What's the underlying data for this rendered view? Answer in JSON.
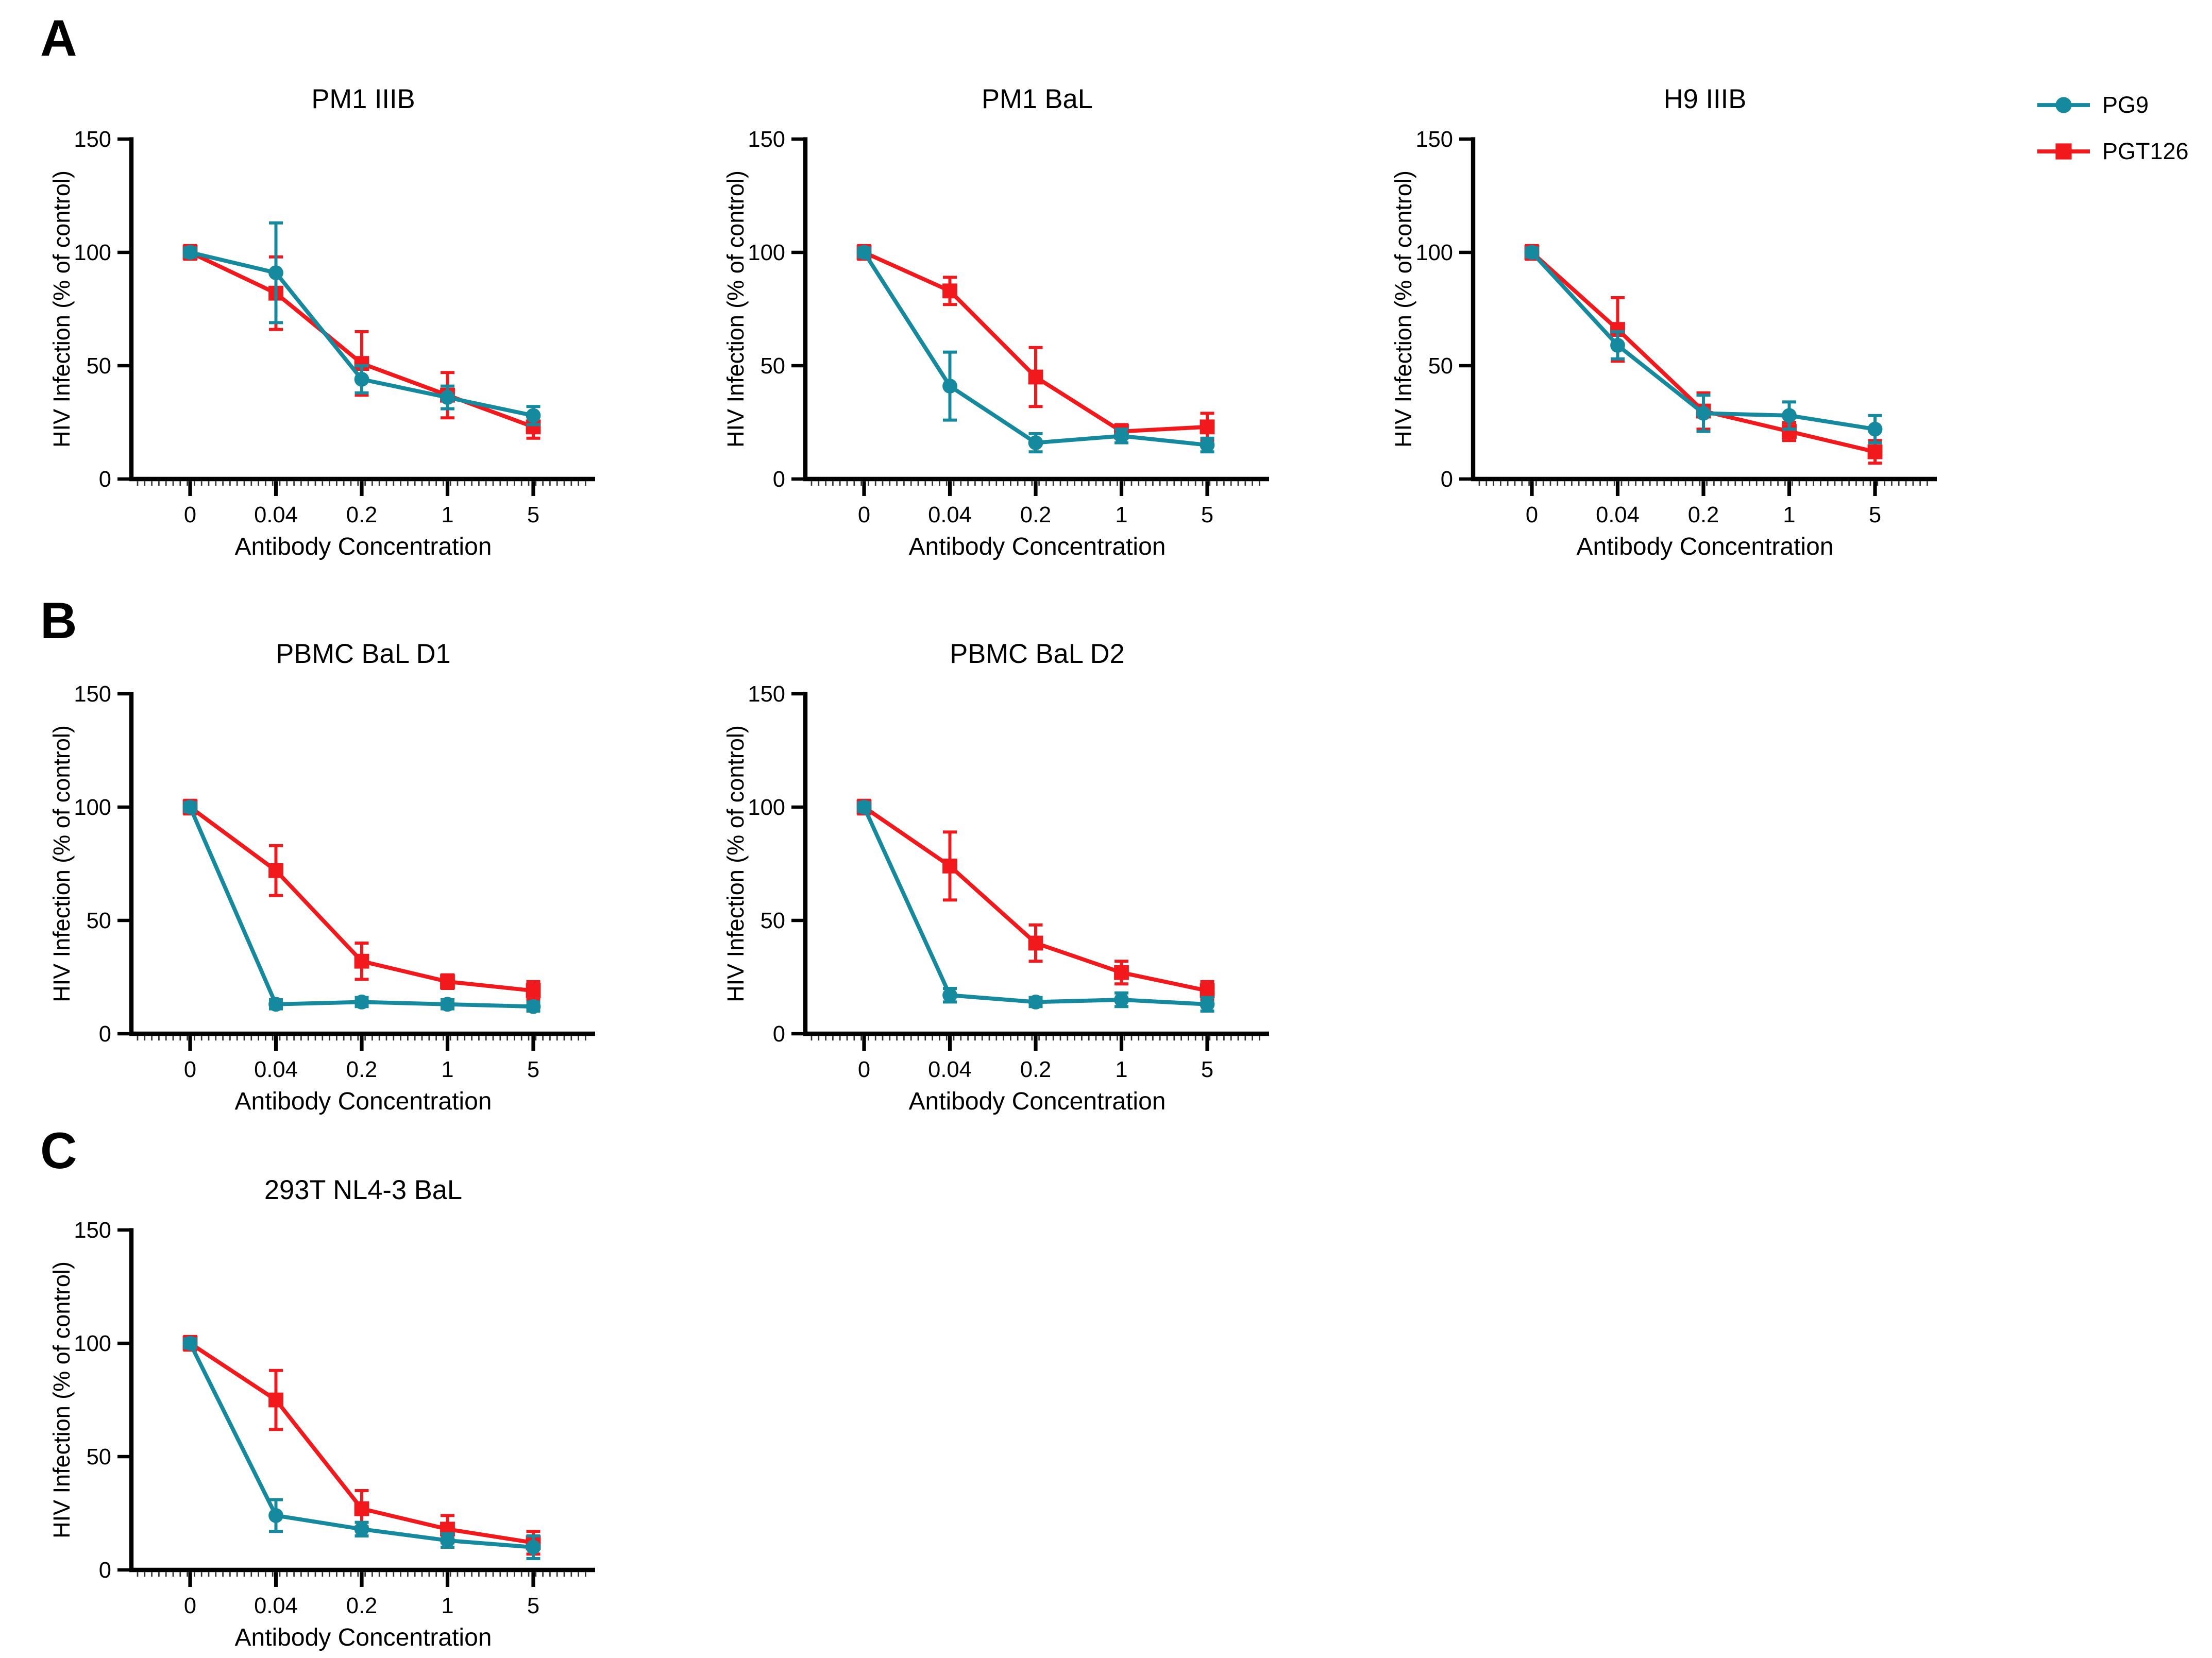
{
  "figure": {
    "panel_labels": [
      "A",
      "B",
      "C"
    ],
    "colors": {
      "pg9": "#15899D",
      "pgt126": "#F2191D"
    },
    "legend": {
      "items": [
        {
          "label": "PG9",
          "series": "pg9",
          "marker": "circle"
        },
        {
          "label": "PGT126",
          "series": "pgt126",
          "marker": "square"
        }
      ]
    }
  },
  "chart_data": [
    {
      "panel": "A",
      "title": "PM1 IIIB",
      "type": "line",
      "xlabel": "Antibody Concentration",
      "ylabel": "HIV Infection (% of control)",
      "x_labels": [
        "0",
        "0.04",
        "0.2",
        "1",
        "5"
      ],
      "ylim": [
        0,
        150
      ],
      "yticks": [
        0,
        50,
        100,
        150
      ],
      "grid": false,
      "series": [
        {
          "name": "PG9",
          "color_key": "pg9",
          "marker": "circle",
          "values": [
            100,
            91,
            44,
            36,
            28
          ],
          "errors": [
            2,
            22,
            6,
            5,
            4
          ]
        },
        {
          "name": "PGT126",
          "color_key": "pgt126",
          "marker": "square",
          "values": [
            100,
            82,
            51,
            37,
            23
          ],
          "errors": [
            3,
            16,
            14,
            10,
            5
          ]
        }
      ]
    },
    {
      "panel": "A",
      "title": "PM1 BaL",
      "type": "line",
      "xlabel": "Antibody Concentration",
      "ylabel": "HIV Infection (% of control)",
      "x_labels": [
        "0",
        "0.04",
        "0.2",
        "1",
        "5"
      ],
      "ylim": [
        0,
        150
      ],
      "yticks": [
        0,
        50,
        100,
        150
      ],
      "grid": false,
      "series": [
        {
          "name": "PG9",
          "color_key": "pg9",
          "marker": "circle",
          "values": [
            100,
            41,
            16,
            19,
            15
          ],
          "errors": [
            2,
            15,
            4,
            3,
            3
          ]
        },
        {
          "name": "PGT126",
          "color_key": "pgt126",
          "marker": "square",
          "values": [
            100,
            83,
            45,
            21,
            23
          ],
          "errors": [
            3,
            6,
            13,
            3,
            6
          ]
        }
      ]
    },
    {
      "panel": "A",
      "title": "H9 IIIB",
      "type": "line",
      "xlabel": "Antibody Concentration",
      "ylabel": "HIV Infection (% of control)",
      "x_labels": [
        "0",
        "0.04",
        "0.2",
        "1",
        "5"
      ],
      "ylim": [
        0,
        150
      ],
      "yticks": [
        0,
        50,
        100,
        150
      ],
      "grid": false,
      "series": [
        {
          "name": "PG9",
          "color_key": "pg9",
          "marker": "circle",
          "values": [
            100,
            59,
            29,
            28,
            22
          ],
          "errors": [
            2,
            6,
            8,
            6,
            6
          ]
        },
        {
          "name": "PGT126",
          "color_key": "pgt126",
          "marker": "square",
          "values": [
            100,
            66,
            30,
            21,
            12
          ],
          "errors": [
            3,
            14,
            8,
            4,
            5
          ]
        }
      ]
    },
    {
      "panel": "B",
      "title": "PBMC BaL D1",
      "type": "line",
      "xlabel": "Antibody Concentration",
      "ylabel": "HIV Infection (% of control)",
      "x_labels": [
        "0",
        "0.04",
        "0.2",
        "1",
        "5"
      ],
      "ylim": [
        0,
        150
      ],
      "yticks": [
        0,
        50,
        100,
        150
      ],
      "grid": false,
      "series": [
        {
          "name": "PG9",
          "color_key": "pg9",
          "marker": "circle",
          "values": [
            100,
            13,
            14,
            13,
            12
          ],
          "errors": [
            2,
            2,
            2,
            2,
            2
          ]
        },
        {
          "name": "PGT126",
          "color_key": "pgt126",
          "marker": "square",
          "values": [
            100,
            72,
            32,
            23,
            19
          ],
          "errors": [
            3,
            11,
            8,
            3,
            4
          ]
        }
      ]
    },
    {
      "panel": "B",
      "title": "PBMC BaL D2",
      "type": "line",
      "xlabel": "Antibody Concentration",
      "ylabel": "HIV Infection (% of control)",
      "x_labels": [
        "0",
        "0.04",
        "0.2",
        "1",
        "5"
      ],
      "ylim": [
        0,
        150
      ],
      "yticks": [
        0,
        50,
        100,
        150
      ],
      "grid": false,
      "series": [
        {
          "name": "PG9",
          "color_key": "pg9",
          "marker": "circle",
          "values": [
            100,
            17,
            14,
            15,
            13
          ],
          "errors": [
            2,
            3,
            2,
            3,
            3
          ]
        },
        {
          "name": "PGT126",
          "color_key": "pgt126",
          "marker": "square",
          "values": [
            100,
            74,
            40,
            27,
            19
          ],
          "errors": [
            3,
            15,
            8,
            5,
            4
          ]
        }
      ]
    },
    {
      "panel": "C",
      "title": "293T NL4-3 BaL",
      "type": "line",
      "xlabel": "Antibody Concentration",
      "ylabel": "HIV Infection (% of control)",
      "x_labels": [
        "0",
        "0.04",
        "0.2",
        "1",
        "5"
      ],
      "ylim": [
        0,
        150
      ],
      "yticks": [
        0,
        50,
        100,
        150
      ],
      "grid": false,
      "series": [
        {
          "name": "PG9",
          "color_key": "pg9",
          "marker": "circle",
          "values": [
            100,
            24,
            18,
            13,
            10
          ],
          "errors": [
            2,
            7,
            3,
            3,
            5
          ]
        },
        {
          "name": "PGT126",
          "color_key": "pgt126",
          "marker": "square",
          "values": [
            100,
            75,
            27,
            18,
            12
          ],
          "errors": [
            3,
            13,
            8,
            6,
            5
          ]
        }
      ]
    }
  ]
}
